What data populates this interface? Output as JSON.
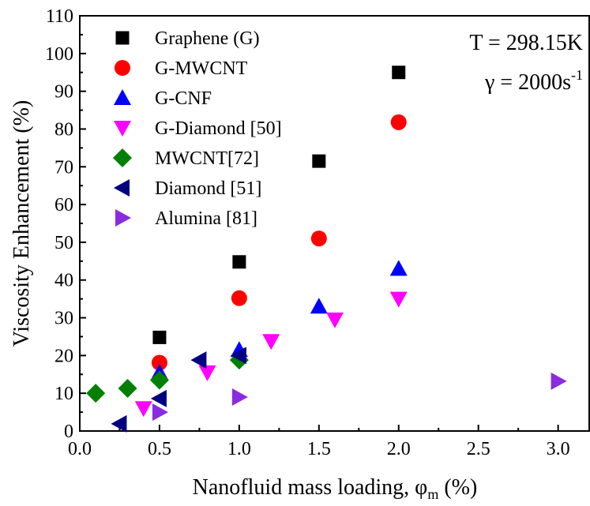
{
  "chart_data": {
    "type": "scatter",
    "title": "",
    "xlabel": "Nanofluid mass loading, φ",
    "xlabel_sub": "m",
    "xlabel_unit": " (%)",
    "ylabel": "Viscosity Enhancement (%)",
    "xlim": [
      0.0,
      3.2
    ],
    "ylim": [
      0,
      110
    ],
    "x_ticks": [
      "0.0",
      "0.5",
      "1.0",
      "1.5",
      "2.0",
      "2.5",
      "3.0"
    ],
    "y_ticks": [
      "0",
      "10",
      "20",
      "30",
      "40",
      "50",
      "60",
      "70",
      "80",
      "90",
      "100",
      "110"
    ],
    "grid": false,
    "legend_position": "top-left",
    "annotations": {
      "temperature": "T = 298.15K",
      "shear_prefix": "γ = 2000s",
      "shear_sup": "-1"
    },
    "series": [
      {
        "name": "Graphene (G)",
        "marker": "square",
        "color": "#000000",
        "x": [
          0.5,
          1.0,
          1.5,
          2.0
        ],
        "y": [
          24.8,
          44.8,
          71.5,
          95.0
        ]
      },
      {
        "name": "G-MWCNT",
        "marker": "circle",
        "color": "#ff0000",
        "x": [
          0.5,
          1.0,
          1.5,
          2.0
        ],
        "y": [
          18.1,
          35.2,
          51.0,
          81.8
        ]
      },
      {
        "name": "G-CNF",
        "marker": "triangle-up",
        "color": "#0000ff",
        "x": [
          0.5,
          1.0,
          1.5,
          2.0
        ],
        "y": [
          15.5,
          21.5,
          33.0,
          43.0
        ]
      },
      {
        "name": "G-Diamond [50]",
        "marker": "triangle-down",
        "color": "#ff00ff",
        "x": [
          0.4,
          0.8,
          1.2,
          1.6,
          2.0
        ],
        "y": [
          6.0,
          15.5,
          23.8,
          29.5,
          35.0
        ]
      },
      {
        "name": "MWCNT[72]",
        "marker": "diamond",
        "color": "#008000",
        "x": [
          0.1,
          0.3,
          0.5,
          1.0
        ],
        "y": [
          10.0,
          11.3,
          13.5,
          18.8
        ]
      },
      {
        "name": "Diamond [51]",
        "marker": "triangle-left",
        "color": "#000080",
        "x": [
          0.25,
          0.5,
          0.75,
          1.0
        ],
        "y": [
          1.9,
          8.6,
          18.8,
          20.0
        ]
      },
      {
        "name": "Alumina [81]",
        "marker": "triangle-right",
        "color": "#8a2be2",
        "x": [
          0.5,
          1.0,
          3.0
        ],
        "y": [
          5.0,
          9.0,
          13.2
        ]
      }
    ]
  }
}
